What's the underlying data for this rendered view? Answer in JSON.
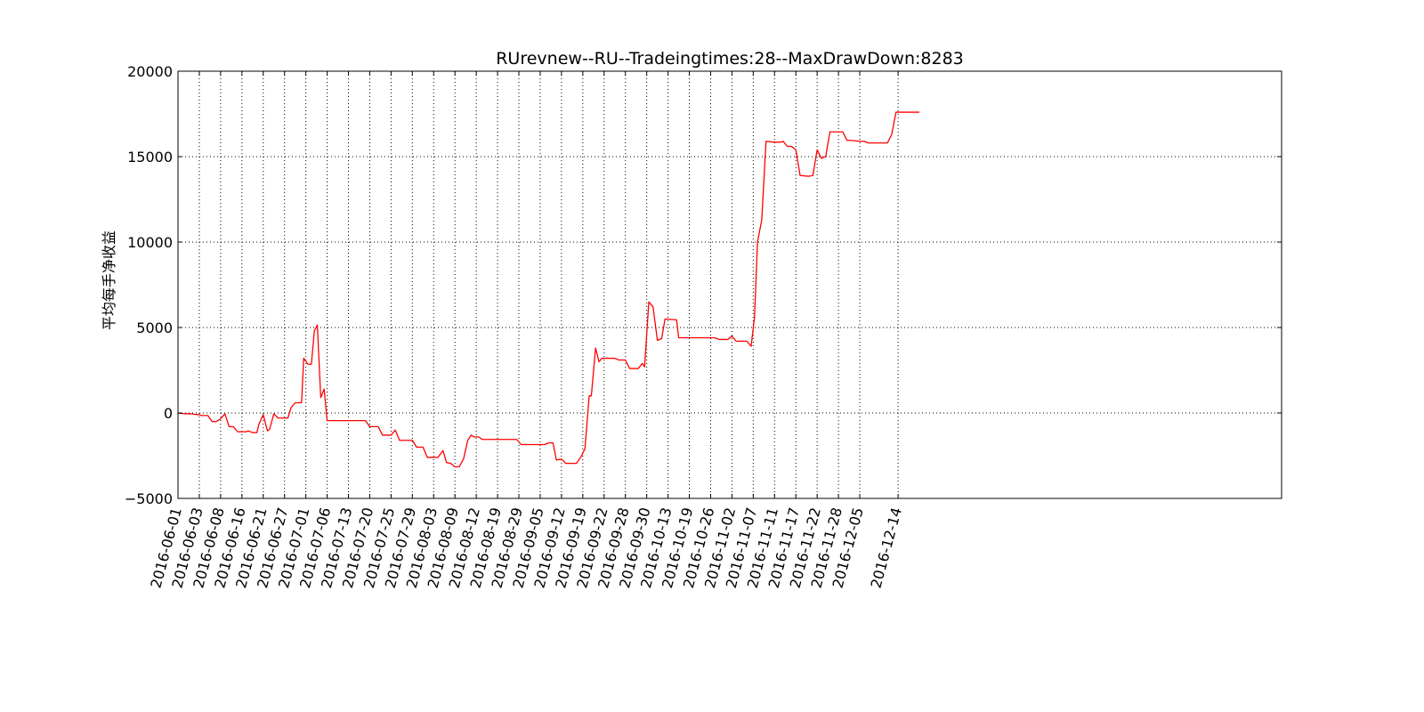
{
  "chart_data": {
    "type": "line",
    "title": "RUrevnew--RU--Tradeingtimes:28--MaxDrawDown:8283",
    "xlabel": "",
    "ylabel": "平均每手净收益",
    "ylim": [
      -5000,
      20000
    ],
    "yticks": [
      {
        "value": -5000,
        "label": "−5000"
      },
      {
        "value": 0,
        "label": "0"
      },
      {
        "value": 5000,
        "label": "5000"
      },
      {
        "value": 10000,
        "label": "10000"
      },
      {
        "value": 15000,
        "label": "15000"
      },
      {
        "value": 20000,
        "label": "20000"
      }
    ],
    "xlim": [
      0,
      259
    ],
    "xticks": [
      {
        "index": 0,
        "label": "2016-06-01"
      },
      {
        "index": 5,
        "label": "2016-06-03"
      },
      {
        "index": 10,
        "label": "2016-06-08"
      },
      {
        "index": 15,
        "label": "2016-06-16"
      },
      {
        "index": 20,
        "label": "2016-06-21"
      },
      {
        "index": 25,
        "label": "2016-06-27"
      },
      {
        "index": 30,
        "label": "2016-07-01"
      },
      {
        "index": 35,
        "label": "2016-07-06"
      },
      {
        "index": 40,
        "label": "2016-07-13"
      },
      {
        "index": 45,
        "label": "2016-07-20"
      },
      {
        "index": 50,
        "label": "2016-07-25"
      },
      {
        "index": 55,
        "label": "2016-07-29"
      },
      {
        "index": 60,
        "label": "2016-08-03"
      },
      {
        "index": 65,
        "label": "2016-08-09"
      },
      {
        "index": 70,
        "label": "2016-08-12"
      },
      {
        "index": 75,
        "label": "2016-08-19"
      },
      {
        "index": 80,
        "label": "2016-08-29"
      },
      {
        "index": 85,
        "label": "2016-09-05"
      },
      {
        "index": 90,
        "label": "2016-09-12"
      },
      {
        "index": 95,
        "label": "2016-09-19"
      },
      {
        "index": 100,
        "label": "2016-09-22"
      },
      {
        "index": 105,
        "label": "2016-09-28"
      },
      {
        "index": 110,
        "label": "2016-09-30"
      },
      {
        "index": 115,
        "label": "2016-10-13"
      },
      {
        "index": 120,
        "label": "2016-10-19"
      },
      {
        "index": 125,
        "label": "2016-10-26"
      },
      {
        "index": 130,
        "label": "2016-11-02"
      },
      {
        "index": 135,
        "label": "2016-11-07"
      },
      {
        "index": 140,
        "label": "2016-11-11"
      },
      {
        "index": 145,
        "label": "2016-11-17"
      },
      {
        "index": 150,
        "label": "2016-11-22"
      },
      {
        "index": 155,
        "label": "2016-11-28"
      },
      {
        "index": 160,
        "label": "2016-12-05"
      },
      {
        "index": 169,
        "label": "2016-12-14"
      }
    ],
    "grid": true,
    "line_color": "#ff0000",
    "series": [
      {
        "points": [
          [
            0,
            0
          ],
          [
            1,
            -30
          ],
          [
            2,
            -50
          ],
          [
            3,
            -50
          ],
          [
            4,
            -80
          ],
          [
            5,
            -100
          ],
          [
            5.5,
            -150
          ],
          [
            7,
            -150
          ],
          [
            8,
            -500
          ],
          [
            9,
            -500
          ],
          [
            10,
            -350
          ],
          [
            11,
            -50
          ],
          [
            12,
            -800
          ],
          [
            13,
            -800
          ],
          [
            14,
            -1100
          ],
          [
            15,
            -1100
          ],
          [
            16,
            -1100
          ],
          [
            16.5,
            -1050
          ],
          [
            17.5,
            -1150
          ],
          [
            18.5,
            -1150
          ],
          [
            19,
            -650
          ],
          [
            20,
            -100
          ],
          [
            21,
            -1050
          ],
          [
            21.5,
            -950
          ],
          [
            22.5,
            -50
          ],
          [
            23.5,
            -300
          ],
          [
            25,
            -300
          ],
          [
            25.8,
            -300
          ],
          [
            26.5,
            300
          ],
          [
            27.5,
            600
          ],
          [
            29,
            600
          ],
          [
            29.5,
            3200
          ],
          [
            30.5,
            2850
          ],
          [
            31.3,
            2850
          ],
          [
            32,
            4800
          ],
          [
            32.7,
            5150
          ],
          [
            33.5,
            900
          ],
          [
            34.3,
            1400
          ],
          [
            35,
            -450
          ],
          [
            38,
            -450
          ],
          [
            40,
            -450
          ],
          [
            42,
            -450
          ],
          [
            44,
            -450
          ],
          [
            45,
            -800
          ],
          [
            47,
            -800
          ],
          [
            48,
            -1300
          ],
          [
            50,
            -1300
          ],
          [
            51,
            -1000
          ],
          [
            52,
            -1600
          ],
          [
            55,
            -1600
          ],
          [
            56,
            -2000
          ],
          [
            57.5,
            -2000
          ],
          [
            58.5,
            -2600
          ],
          [
            61,
            -2600
          ],
          [
            62.2,
            -2200
          ],
          [
            63,
            -2900
          ],
          [
            64,
            -2950
          ],
          [
            65,
            -3150
          ],
          [
            66,
            -3150
          ],
          [
            67,
            -2700
          ],
          [
            68,
            -1600
          ],
          [
            68.8,
            -1300
          ],
          [
            69.5,
            -1400
          ],
          [
            70.5,
            -1400
          ],
          [
            71.5,
            -1550
          ],
          [
            73,
            -1550
          ],
          [
            76,
            -1550
          ],
          [
            79.5,
            -1550
          ],
          [
            80.5,
            -1850
          ],
          [
            83,
            -1850
          ],
          [
            86,
            -1850
          ],
          [
            87,
            -1750
          ],
          [
            88,
            -1750
          ],
          [
            88.8,
            -2750
          ],
          [
            90,
            -2700
          ],
          [
            91,
            -2950
          ],
          [
            92,
            -2950
          ],
          [
            93.5,
            -2950
          ],
          [
            94.5,
            -2600
          ],
          [
            95.5,
            -2100
          ],
          [
            96.5,
            1000
          ],
          [
            97,
            1000
          ],
          [
            98,
            3800
          ],
          [
            98.8,
            3000
          ],
          [
            99.5,
            3200
          ],
          [
            102.5,
            3200
          ],
          [
            103.5,
            3100
          ],
          [
            105,
            3100
          ],
          [
            106,
            2600
          ],
          [
            108,
            2600
          ],
          [
            109,
            2900
          ],
          [
            109.5,
            2700
          ],
          [
            110.5,
            6500
          ],
          [
            111.5,
            6200
          ],
          [
            112.5,
            4250
          ],
          [
            113.5,
            4350
          ],
          [
            114.3,
            5500
          ],
          [
            117,
            5450
          ],
          [
            117.5,
            4400
          ],
          [
            119,
            4400
          ],
          [
            123,
            4400
          ],
          [
            126,
            4400
          ],
          [
            127,
            4300
          ],
          [
            129,
            4300
          ],
          [
            130,
            4500
          ],
          [
            131,
            4200
          ],
          [
            132,
            4200
          ],
          [
            133.5,
            4200
          ],
          [
            134.5,
            3900
          ],
          [
            135.3,
            5600
          ],
          [
            136,
            10000
          ],
          [
            137,
            11300
          ],
          [
            138,
            15900
          ],
          [
            140,
            15850
          ],
          [
            141.5,
            15850
          ],
          [
            142,
            15900
          ],
          [
            143,
            15600
          ],
          [
            144,
            15600
          ],
          [
            145,
            15400
          ],
          [
            146,
            13900
          ],
          [
            148,
            13850
          ],
          [
            149,
            13900
          ],
          [
            150,
            15400
          ],
          [
            151,
            14900
          ],
          [
            152,
            15000
          ],
          [
            153,
            16450
          ],
          [
            156,
            16450
          ],
          [
            157,
            15950
          ],
          [
            158,
            15950
          ],
          [
            160,
            15900
          ],
          [
            161,
            15900
          ],
          [
            162,
            15800
          ],
          [
            164,
            15800
          ],
          [
            166,
            15800
          ],
          [
            166.5,
            15800
          ],
          [
            167.5,
            16300
          ],
          [
            168.5,
            17600
          ],
          [
            172,
            17600
          ],
          [
            174,
            17600
          ]
        ]
      }
    ]
  }
}
